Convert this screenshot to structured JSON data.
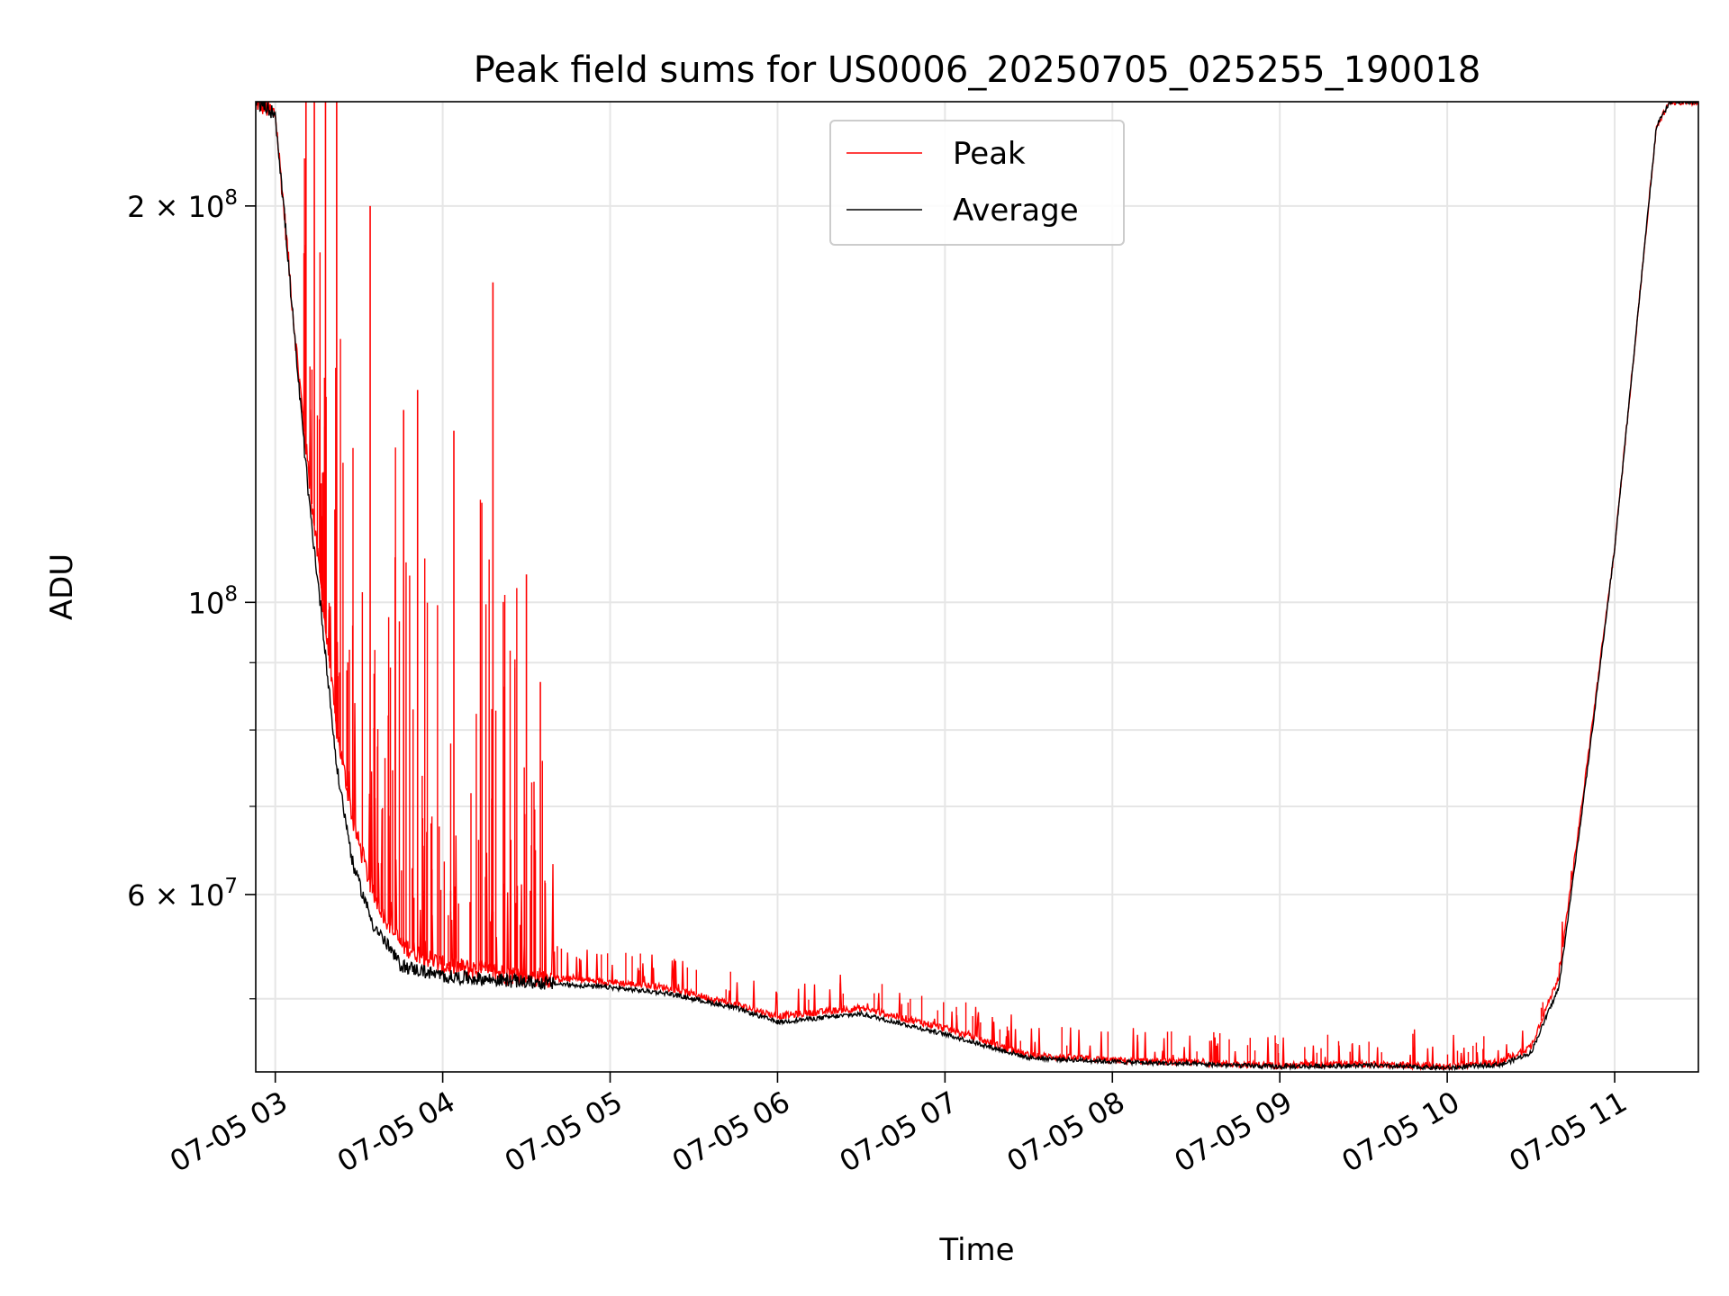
{
  "chart_data": {
    "type": "line",
    "title": "Peak field sums for US0006_20250705_025255_190018",
    "xlabel": "Time",
    "ylabel": "ADU",
    "y_scale": "log",
    "x_range": [
      "07-05 02:53",
      "07-05 11:30"
    ],
    "ylim": [
      44000000,
      240000000
    ],
    "grid": true,
    "legend_position": "top-center",
    "x_ticks": [
      "07-05 03",
      "07-05 04",
      "07-05 05",
      "07-05 06",
      "07-05 07",
      "07-05 08",
      "07-05 09",
      "07-05 10",
      "07-05 11"
    ],
    "y_ticks": [
      {
        "value": 200000000,
        "base": "2",
        "exp": "8",
        "times": true
      },
      {
        "value": 100000000,
        "base": "10",
        "exp": "8",
        "times": false
      },
      {
        "value": 60000000,
        "base": "6",
        "exp": "7",
        "times": true
      }
    ],
    "y_minor_ticks": [
      50000000,
      70000000,
      80000000,
      90000000
    ],
    "series": [
      {
        "name": "Peak",
        "color": "#ff0000",
        "spike_count": 110,
        "spikes": [
          [
            "07-05 03:11",
            240000000
          ],
          [
            "07-05 03:14",
            240000000
          ],
          [
            "07-05 03:18",
            240000000
          ],
          [
            "07-05 03:22",
            240000000
          ],
          [
            "07-05 03:34",
            200000000
          ],
          [
            "07-05 03:46",
            140000000
          ],
          [
            "07-05 03:51",
            145000000
          ],
          [
            "07-05 04:04",
            135000000
          ],
          [
            "07-05 04:18",
            175000000
          ],
          [
            "07-05 04:30",
            105000000
          ],
          [
            "07-05 04:35",
            87000000
          ]
        ],
        "trend": [
          [
            "07-05 02:53",
            240000000
          ],
          [
            "07-05 03:00",
            235000000
          ],
          [
            "07-05 03:03",
            200000000
          ],
          [
            "07-05 03:07",
            160000000
          ],
          [
            "07-05 03:12",
            125000000
          ],
          [
            "07-05 03:17",
            100000000
          ],
          [
            "07-05 03:22",
            80000000
          ],
          [
            "07-05 03:28",
            68000000
          ],
          [
            "07-05 03:35",
            60000000
          ],
          [
            "07-05 03:45",
            55000000
          ],
          [
            "07-05 04:00",
            53000000
          ],
          [
            "07-05 04:30",
            52000000
          ],
          [
            "07-05 05:00",
            51500000
          ],
          [
            "07-05 05:20",
            51000000
          ],
          [
            "07-05 05:45",
            49500000
          ],
          [
            "07-05 06:00",
            48500000
          ],
          [
            "07-05 06:30",
            49200000
          ],
          [
            "07-05 07:00",
            47500000
          ],
          [
            "07-05 07:30",
            45300000
          ],
          [
            "07-05 08:00",
            44900000
          ],
          [
            "07-05 08:30",
            44700000
          ],
          [
            "07-05 09:00",
            44500000
          ],
          [
            "07-05 09:30",
            44600000
          ],
          [
            "07-05 10:00",
            44400000
          ],
          [
            "07-05 10:20",
            44800000
          ],
          [
            "07-05 10:30",
            46000000
          ],
          [
            "07-05 10:40",
            52000000
          ],
          [
            "07-05 10:50",
            75000000
          ],
          [
            "07-05 11:00",
            110000000
          ],
          [
            "07-05 11:10",
            180000000
          ],
          [
            "07-05 11:15",
            230000000
          ],
          [
            "07-05 11:20",
            240000000
          ],
          [
            "07-05 11:30",
            240000000
          ]
        ]
      },
      {
        "name": "Average",
        "color": "#000000",
        "trend": [
          [
            "07-05 02:53",
            240000000
          ],
          [
            "07-05 03:00",
            235000000
          ],
          [
            "07-05 03:03",
            200000000
          ],
          [
            "07-05 03:07",
            158000000
          ],
          [
            "07-05 03:12",
            120000000
          ],
          [
            "07-05 03:17",
            96000000
          ],
          [
            "07-05 03:22",
            75000000
          ],
          [
            "07-05 03:28",
            63000000
          ],
          [
            "07-05 03:35",
            57000000
          ],
          [
            "07-05 03:45",
            53000000
          ],
          [
            "07-05 04:00",
            52000000
          ],
          [
            "07-05 04:30",
            51500000
          ],
          [
            "07-05 05:00",
            51000000
          ],
          [
            "07-05 05:20",
            50500000
          ],
          [
            "07-05 05:45",
            49200000
          ],
          [
            "07-05 06:00",
            48000000
          ],
          [
            "07-05 06:30",
            48700000
          ],
          [
            "07-05 07:00",
            47000000
          ],
          [
            "07-05 07:30",
            45100000
          ],
          [
            "07-05 08:00",
            44800000
          ],
          [
            "07-05 08:30",
            44600000
          ],
          [
            "07-05 09:00",
            44400000
          ],
          [
            "07-05 09:30",
            44500000
          ],
          [
            "07-05 10:00",
            44300000
          ],
          [
            "07-05 10:20",
            44600000
          ],
          [
            "07-05 10:30",
            45500000
          ],
          [
            "07-05 10:40",
            51000000
          ],
          [
            "07-05 10:50",
            74000000
          ],
          [
            "07-05 11:00",
            110000000
          ],
          [
            "07-05 11:10",
            180000000
          ],
          [
            "07-05 11:15",
            230000000
          ],
          [
            "07-05 11:20",
            240000000
          ],
          [
            "07-05 11:30",
            240000000
          ]
        ]
      }
    ]
  }
}
